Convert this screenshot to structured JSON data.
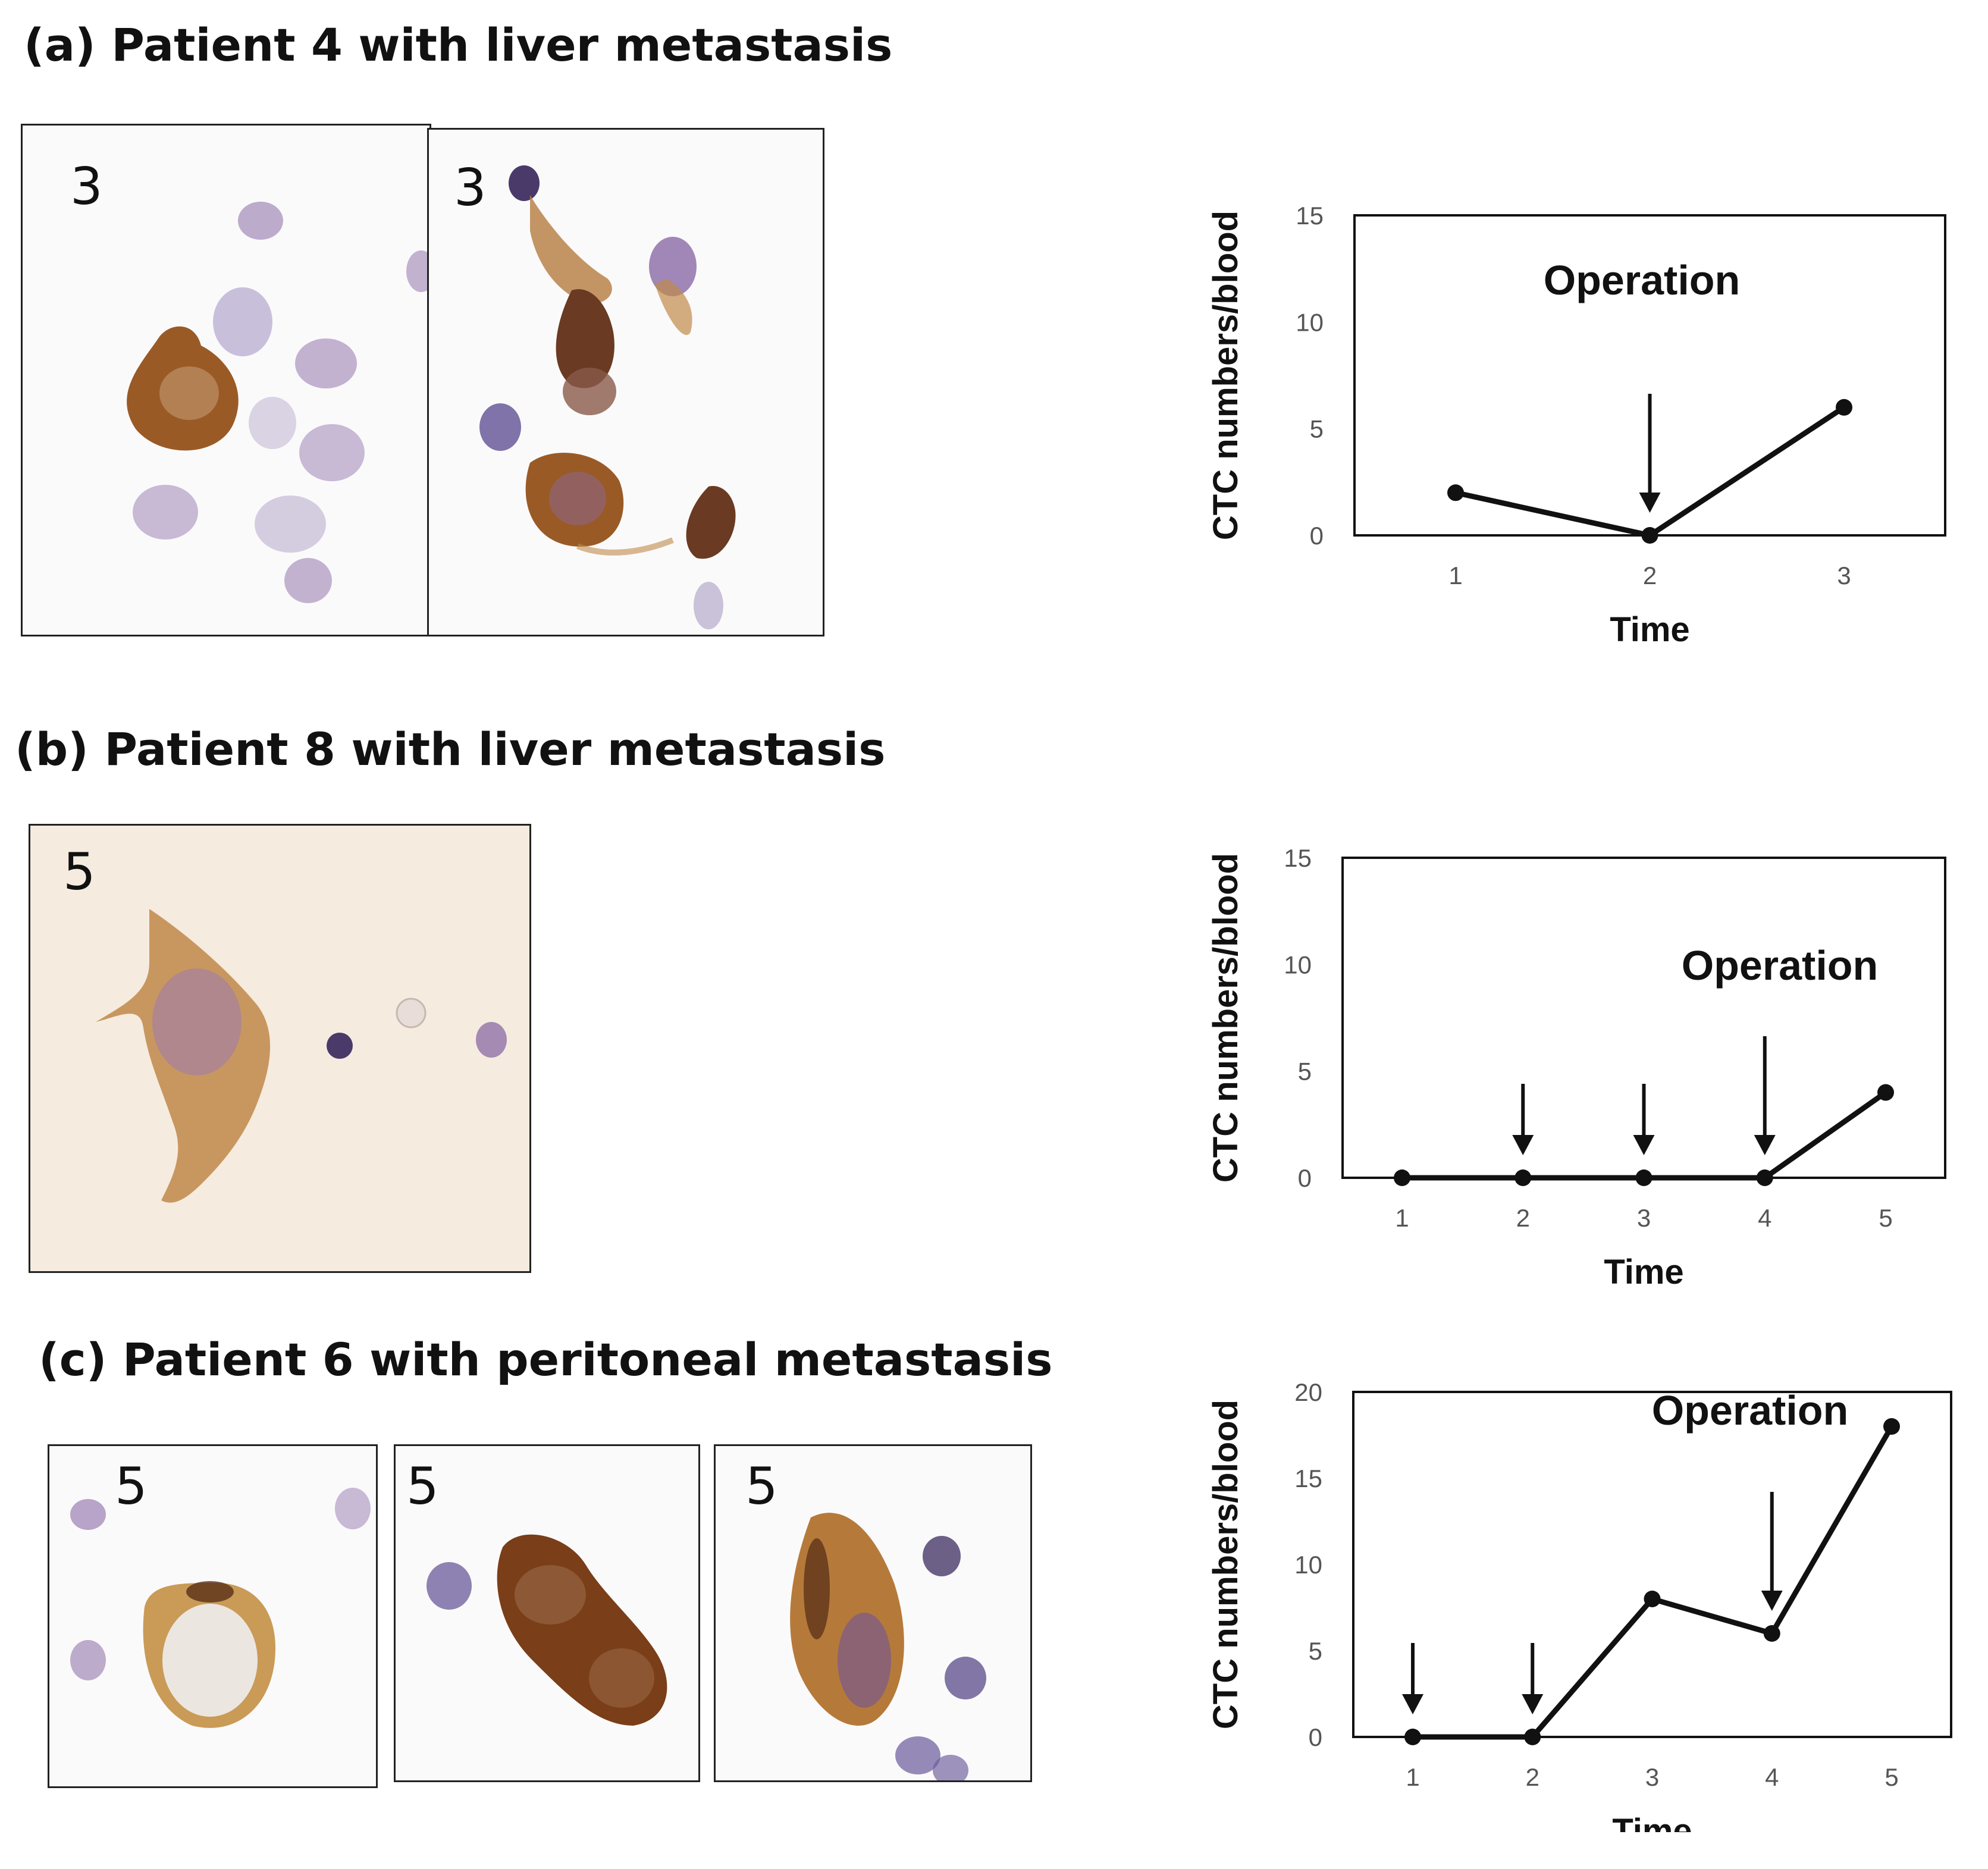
{
  "titles": {
    "a": "(a) Patient 4 with liver metastasis",
    "b": "(b) Patient 8 with liver metastasis",
    "c": "(c) Patient 6 with peritoneal metastasis"
  },
  "micrographs": {
    "a1": {
      "count": "3",
      "description": "brown-stained CTC with purple leukocytes"
    },
    "a2": {
      "count": "3",
      "description": "cluster of brown-stained CTCs"
    },
    "b1": {
      "count": "5",
      "description": "elongated brown-stained CTC on beige background"
    },
    "c1": {
      "count": "5",
      "description": "round brown-rimmed CTC"
    },
    "c2": {
      "count": "5",
      "description": "elongated doublet CTC"
    },
    "c3": {
      "count": "5",
      "description": "elongated CTC with nuclei"
    }
  },
  "colors": {
    "line": "#111111",
    "stain_brown": "#9a5a26",
    "stain_purple": "#8a6aa6",
    "background_b": "#f6ebdf"
  },
  "chart_data": [
    {
      "id": "a",
      "type": "line",
      "title": "",
      "xlabel": "Time",
      "ylabel": "CTC numbers/blood",
      "x": [
        1,
        2,
        3
      ],
      "values": [
        2,
        0,
        6
      ],
      "ylim": [
        0,
        15
      ],
      "yticks": [
        "0",
        "5",
        "10",
        "15"
      ],
      "xticks": [
        "1",
        "2",
        "3"
      ],
      "annotation": "Operation",
      "arrows_at": [
        2
      ],
      "operation_at": 2
    },
    {
      "id": "b",
      "type": "line",
      "title": "",
      "xlabel": "Time",
      "ylabel": "CTC numbers/blood",
      "x": [
        1,
        2,
        3,
        4,
        5
      ],
      "values": [
        0,
        0,
        0,
        0,
        4
      ],
      "ylim": [
        0,
        15
      ],
      "yticks": [
        "0",
        "5",
        "10",
        "15"
      ],
      "xticks": [
        "1",
        "2",
        "3",
        "4",
        "5"
      ],
      "annotation": "Operation",
      "arrows_at": [
        2,
        3,
        4
      ],
      "operation_at": 4
    },
    {
      "id": "c",
      "type": "line",
      "title": "",
      "xlabel": "Time",
      "ylabel": "CTC numbers/blood",
      "x": [
        1,
        2,
        3,
        4,
        5
      ],
      "values": [
        0,
        0,
        8,
        6,
        18
      ],
      "ylim": [
        0,
        20
      ],
      "yticks": [
        "0",
        "5",
        "10",
        "15",
        "20"
      ],
      "xticks": [
        "1",
        "2",
        "3",
        "4",
        "5"
      ],
      "annotation": "Operation",
      "arrows_at": [
        1,
        2,
        4
      ],
      "operation_at": 4
    }
  ]
}
